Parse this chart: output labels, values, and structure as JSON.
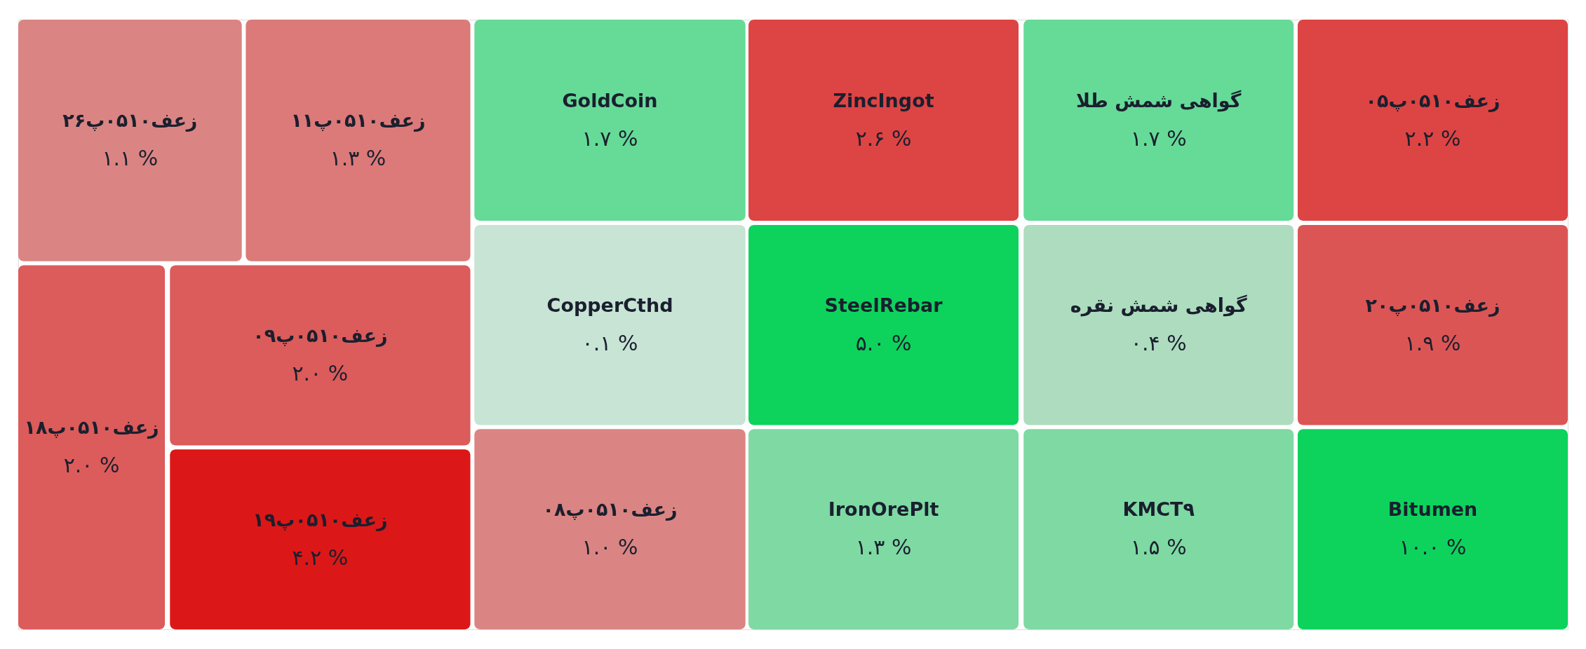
{
  "chart_data": {
    "type": "other",
    "categories": [
      "زعف۰۵۱۰پ۲۶",
      "زعف۰۵۱۰پ۱۱",
      "زعف۰۵۱۰پ۱۸",
      "زعف۰۵۱۰پ۰۹",
      "زعف۰۵۱۰پ۱۹",
      "GoldCoin",
      "CopperCthd",
      "زعف۰۵۱۰پ۰۸",
      "ZincIngot",
      "SteelRebar",
      "IronOrePlt",
      "گواهی شمش طلا",
      "گواهی شمش نقره",
      "KMCT۹",
      "زعف۰۵۱۰پ۰۵",
      "زعف۰۵۱۰پ۲۰",
      "Bitumen"
    ],
    "values": [
      1.1,
      1.3,
      2.0,
      2.0,
      4.2,
      1.7,
      0.1,
      1.0,
      2.6,
      5.0,
      1.3,
      1.7,
      0.4,
      1.5,
      2.2,
      1.9,
      10.0
    ],
    "value_labels": [
      "۱.۱ %",
      "۱.۳ %",
      "۲.۰ %",
      "۲.۰ %",
      "۴.۲ %",
      "۱.۷ %",
      "۰.۱ %",
      "۱.۰ %",
      "۲.۶ %",
      "۵.۰ %",
      "۱.۳ %",
      "۱.۷ %",
      "۰.۴ %",
      "۱.۵ %",
      "۲.۲ %",
      "۱.۹ %",
      "۱۰.۰ %"
    ],
    "colors": [
      "#da8583",
      "#db7a79",
      "#db5c5b",
      "#db5c5b",
      "#dc1717",
      "#66da97",
      "#c7e4d5",
      "#da8583",
      "#dd4444",
      "#0dd35d",
      "#7ed9a3",
      "#66da97",
      "#addcbf",
      "#7ed9a3",
      "#dd4444",
      "#dc5555",
      "#0dd35d"
    ]
  }
}
